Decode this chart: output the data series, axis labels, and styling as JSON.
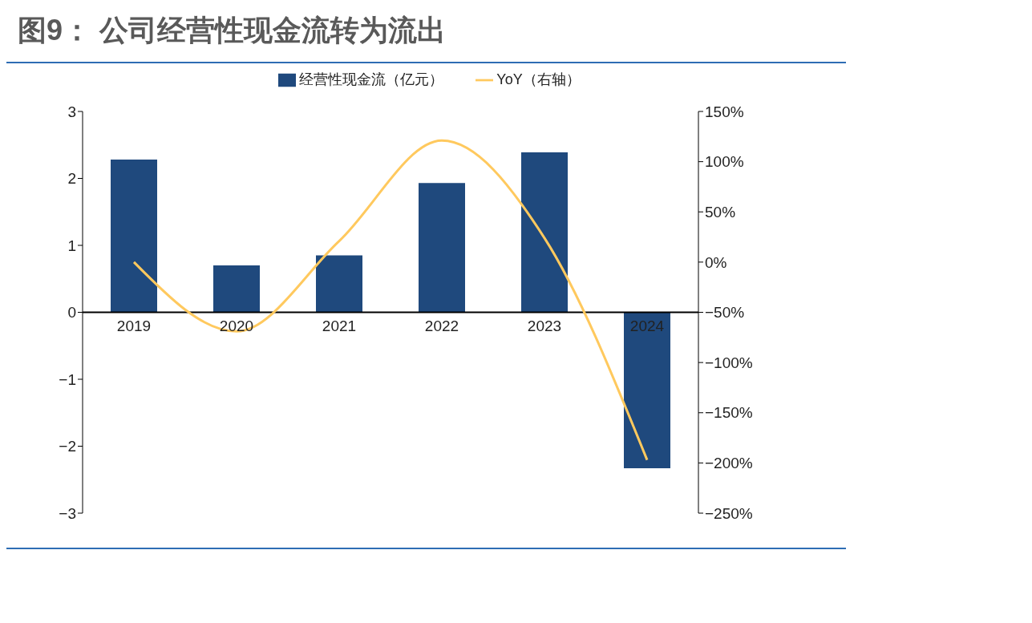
{
  "chart_data": {
    "type": "bar",
    "title": "图9： 公司经营性现金流转为流出",
    "categories": [
      "2019",
      "2020",
      "2021",
      "2022",
      "2023",
      "2024"
    ],
    "series": [
      {
        "name": "经营性现金流（亿元）",
        "color": "#1f497d",
        "values": [
          2.28,
          0.7,
          0.85,
          1.93,
          2.39,
          -2.33
        ]
      },
      {
        "name": "YoY（右轴）",
        "type": "line",
        "axis": "y2",
        "color": "#ffc95e",
        "values": [
          0,
          -69,
          21,
          121,
          24,
          -197
        ]
      }
    ],
    "ylim": [
      -3,
      3
    ],
    "yticks": [
      {
        "value": -3,
        "label": "−3"
      },
      {
        "value": -2,
        "label": "−2"
      },
      {
        "value": -1,
        "label": "−1"
      },
      0,
      1,
      2,
      3
    ],
    "y2lim": [
      -250,
      150
    ],
    "y2ticks": [
      {
        "value": -250,
        "label": "−250%"
      },
      {
        "value": -200,
        "label": "−200%"
      },
      {
        "value": -150,
        "label": "−150%"
      },
      {
        "value": -100,
        "label": "−100%"
      },
      {
        "value": -50,
        "label": "−50%"
      },
      {
        "value": 0,
        "label": "0%"
      },
      {
        "value": 50,
        "label": "50%"
      },
      {
        "value": 100,
        "label": "100%"
      },
      {
        "value": 150,
        "label": "150%"
      }
    ],
    "grid": false,
    "legend": "top",
    "marker": "none"
  }
}
